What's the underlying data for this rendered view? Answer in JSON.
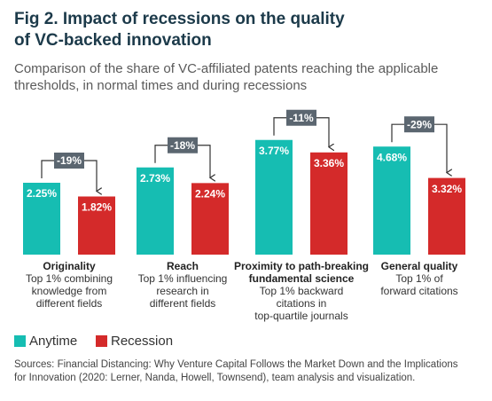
{
  "title": [
    "Fig 2. Impact of recessions on the quality",
    "of VC-backed innovation"
  ],
  "subtitle": [
    "Comparison of the share of VC-affiliated patents reaching the applicable",
    "thresholds, in normal times and during recessions"
  ],
  "series": [
    {
      "name": "Anytime",
      "color": "#16bdb2"
    },
    {
      "name": "Recession",
      "color": "#d42a2a"
    }
  ],
  "source": [
    "Sources: Financial Distancing: Why Venture Capital Follows the Market Down and the Implications",
    "for Innovation (2020: Lerner, Nanda, Howell, Townsend), team analysis and visualization."
  ],
  "chart_data": [
    {
      "type": "bar",
      "title": [
        "Originality"
      ],
      "description": [
        "Top 1% combining",
        "knowledge from",
        "different fields"
      ],
      "values": [
        2.25,
        1.82
      ],
      "value_labels": [
        "2.25%",
        "1.82%"
      ],
      "change": "-19%",
      "ylim": [
        0,
        6
      ]
    },
    {
      "type": "bar",
      "title": [
        "Reach"
      ],
      "description": [
        "Top 1% influencing",
        "research in",
        "different fields"
      ],
      "values": [
        2.73,
        2.24
      ],
      "value_labels": [
        "2.73%",
        "2.24%"
      ],
      "change": "-18%",
      "ylim": [
        0,
        6
      ]
    },
    {
      "type": "bar",
      "title": [
        "Proximity to path-breaking",
        "fundamental science"
      ],
      "description": [
        "Top 1% backward",
        "citations in",
        "top-quartile journals"
      ],
      "values": [
        3.77,
        3.36
      ],
      "value_labels": [
        "3.77%",
        "3.36%"
      ],
      "change": "-11%",
      "ylim": [
        0,
        6.3
      ]
    },
    {
      "type": "bar",
      "title": [
        "General quality"
      ],
      "description": [
        "Top 1% of",
        "forward citations"
      ],
      "values": [
        4.68,
        3.32
      ],
      "value_labels": [
        "4.68%",
        "3.32%"
      ],
      "change": "-29%",
      "ylim": [
        0,
        8.3
      ]
    }
  ]
}
